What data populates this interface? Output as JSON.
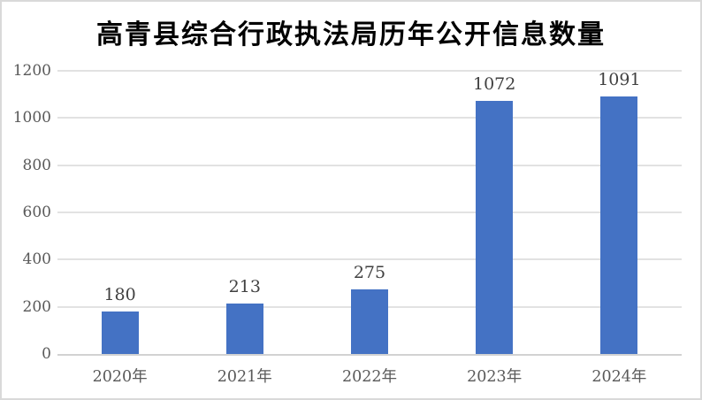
{
  "chart_data": {
    "type": "bar",
    "title": "高青县综合行政执法局历年公开信息数量",
    "categories": [
      "2020年",
      "2021年",
      "2022年",
      "2023年",
      "2024年"
    ],
    "values": [
      180,
      213,
      275,
      1072,
      1091
    ],
    "data_labels": [
      180,
      213,
      275,
      1072,
      1091
    ],
    "xlabel": "",
    "ylabel": "",
    "ylim": [
      0,
      1200
    ],
    "ytick_interval": 200,
    "yticks": [
      0,
      200,
      400,
      600,
      800,
      1000,
      1200
    ],
    "grid": "horizontal",
    "legend": "none",
    "colors": {
      "bar": "#4472C4",
      "title": "#000000",
      "tick_label": "#595959",
      "data_label": "#404040",
      "gridline": "#E2E2E2",
      "axis_line": "#D2D2D2",
      "background": "#FFFFFF",
      "border": "#D9D9D9"
    }
  }
}
